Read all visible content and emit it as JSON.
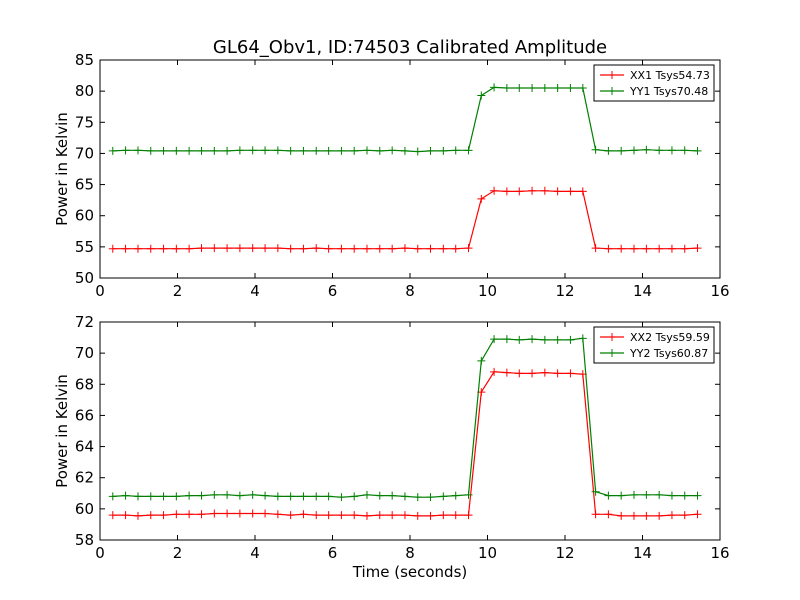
{
  "figure": {
    "title": "GL64_Obv1, ID:74503 Calibrated Amplitude"
  },
  "chart_data": [
    {
      "type": "line",
      "title": "GL64_Obv1, ID:74503 Calibrated Amplitude",
      "xlabel": "",
      "ylabel": "Power in Kelvin",
      "xlim": [
        0,
        16
      ],
      "ylim": [
        50,
        85
      ],
      "xticks": [
        0,
        2,
        4,
        6,
        8,
        10,
        12,
        14,
        16
      ],
      "yticks": [
        50,
        55,
        60,
        65,
        70,
        75,
        80,
        85
      ],
      "grid": false,
      "legend_position": "top-right",
      "marker": "+",
      "x": [
        0.33,
        0.66,
        0.98,
        1.31,
        1.64,
        1.97,
        2.3,
        2.62,
        2.95,
        3.28,
        3.61,
        3.94,
        4.26,
        4.59,
        4.92,
        5.25,
        5.58,
        5.9,
        6.23,
        6.56,
        6.89,
        7.22,
        7.54,
        7.87,
        8.2,
        8.53,
        8.86,
        9.18,
        9.51,
        9.84,
        10.17,
        10.5,
        10.82,
        11.15,
        11.48,
        11.81,
        12.14,
        12.46,
        12.79,
        13.12,
        13.45,
        13.78,
        14.1,
        14.43,
        14.76,
        15.09,
        15.42
      ],
      "series": [
        {
          "name": "XX1 Tsys54.73",
          "color": "#ff0000",
          "values": [
            54.7,
            54.7,
            54.7,
            54.7,
            54.7,
            54.7,
            54.7,
            54.8,
            54.8,
            54.8,
            54.8,
            54.8,
            54.8,
            54.8,
            54.7,
            54.7,
            54.8,
            54.7,
            54.7,
            54.7,
            54.7,
            54.7,
            54.7,
            54.8,
            54.7,
            54.7,
            54.7,
            54.7,
            54.8,
            62.7,
            64.0,
            63.9,
            63.9,
            64.0,
            64.0,
            63.9,
            63.9,
            63.9,
            54.8,
            54.7,
            54.7,
            54.7,
            54.7,
            54.7,
            54.7,
            54.7,
            54.8
          ]
        },
        {
          "name": "YY1 Tsys70.48",
          "color": "#008000",
          "values": [
            70.4,
            70.5,
            70.5,
            70.4,
            70.4,
            70.4,
            70.4,
            70.4,
            70.4,
            70.4,
            70.5,
            70.5,
            70.5,
            70.5,
            70.4,
            70.4,
            70.4,
            70.4,
            70.4,
            70.4,
            70.5,
            70.4,
            70.5,
            70.4,
            70.3,
            70.4,
            70.4,
            70.5,
            70.5,
            79.3,
            80.6,
            80.5,
            80.5,
            80.5,
            80.5,
            80.5,
            80.5,
            80.5,
            70.6,
            70.4,
            70.4,
            70.5,
            70.6,
            70.5,
            70.5,
            70.5,
            70.4
          ]
        }
      ]
    },
    {
      "type": "line",
      "title": "",
      "xlabel": "Time (seconds)",
      "ylabel": "Power in Kelvin",
      "xlim": [
        0,
        16
      ],
      "ylim": [
        58,
        72
      ],
      "xticks": [
        0,
        2,
        4,
        6,
        8,
        10,
        12,
        14,
        16
      ],
      "yticks": [
        58,
        60,
        62,
        64,
        66,
        68,
        70,
        72
      ],
      "grid": false,
      "legend_position": "top-right",
      "marker": "+",
      "x": [
        0.33,
        0.66,
        0.98,
        1.31,
        1.64,
        1.97,
        2.3,
        2.62,
        2.95,
        3.28,
        3.61,
        3.94,
        4.26,
        4.59,
        4.92,
        5.25,
        5.58,
        5.9,
        6.23,
        6.56,
        6.89,
        7.22,
        7.54,
        7.87,
        8.2,
        8.53,
        8.86,
        9.18,
        9.51,
        9.84,
        10.17,
        10.5,
        10.82,
        11.15,
        11.48,
        11.81,
        12.14,
        12.46,
        12.79,
        13.12,
        13.45,
        13.78,
        14.1,
        14.43,
        14.76,
        15.09,
        15.42
      ],
      "series": [
        {
          "name": "XX2 Tsys59.59",
          "color": "#ff0000",
          "values": [
            59.6,
            59.6,
            59.55,
            59.6,
            59.6,
            59.65,
            59.65,
            59.65,
            59.7,
            59.7,
            59.7,
            59.7,
            59.7,
            59.65,
            59.6,
            59.65,
            59.6,
            59.6,
            59.6,
            59.6,
            59.55,
            59.6,
            59.6,
            59.6,
            59.55,
            59.55,
            59.6,
            59.6,
            59.6,
            67.5,
            68.8,
            68.75,
            68.7,
            68.7,
            68.75,
            68.7,
            68.7,
            68.65,
            59.65,
            59.65,
            59.55,
            59.55,
            59.55,
            59.55,
            59.6,
            59.6,
            59.65
          ]
        },
        {
          "name": "YY2 Tsys60.87",
          "color": "#008000",
          "values": [
            60.8,
            60.85,
            60.8,
            60.8,
            60.8,
            60.8,
            60.85,
            60.85,
            60.9,
            60.9,
            60.85,
            60.9,
            60.85,
            60.8,
            60.8,
            60.8,
            60.8,
            60.8,
            60.75,
            60.8,
            60.9,
            60.85,
            60.85,
            60.8,
            60.75,
            60.75,
            60.8,
            60.85,
            60.9,
            69.5,
            70.9,
            70.9,
            70.85,
            70.9,
            70.85,
            70.85,
            70.85,
            70.95,
            61.1,
            60.85,
            60.85,
            60.9,
            60.9,
            60.9,
            60.85,
            60.85,
            60.85
          ]
        }
      ]
    }
  ]
}
